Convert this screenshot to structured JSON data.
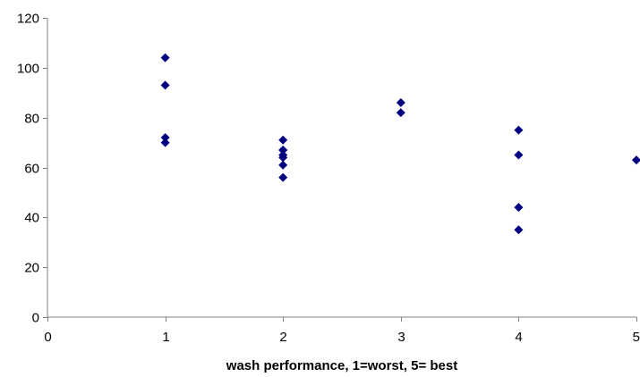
{
  "chart_data": {
    "type": "scatter",
    "title": "",
    "xlabel": "wash performance, 1=worst, 5= best",
    "ylabel": "",
    "xlim": [
      0,
      5
    ],
    "ylim": [
      0,
      120
    ],
    "x_ticks": [
      0,
      1,
      2,
      3,
      4,
      5
    ],
    "y_ticks": [
      0,
      20,
      40,
      60,
      80,
      100,
      120
    ],
    "x_tick_labels": [
      "0",
      "1",
      "2",
      "3",
      "4",
      "5"
    ],
    "y_tick_labels": [
      "0",
      "20",
      "40",
      "60",
      "80",
      "100",
      "120"
    ],
    "grid": false,
    "legend": "none",
    "marker": "diamond",
    "marker_color": "#000080",
    "series": [
      {
        "x": [
          1,
          1,
          1,
          1,
          2,
          2,
          2,
          2,
          2,
          2,
          2,
          3,
          3,
          4,
          4,
          4,
          4,
          5
        ],
        "y": [
          104,
          93,
          72,
          70,
          71,
          67,
          65,
          64,
          61,
          56,
          67,
          86,
          82,
          75,
          65,
          44,
          35,
          63
        ]
      }
    ]
  }
}
